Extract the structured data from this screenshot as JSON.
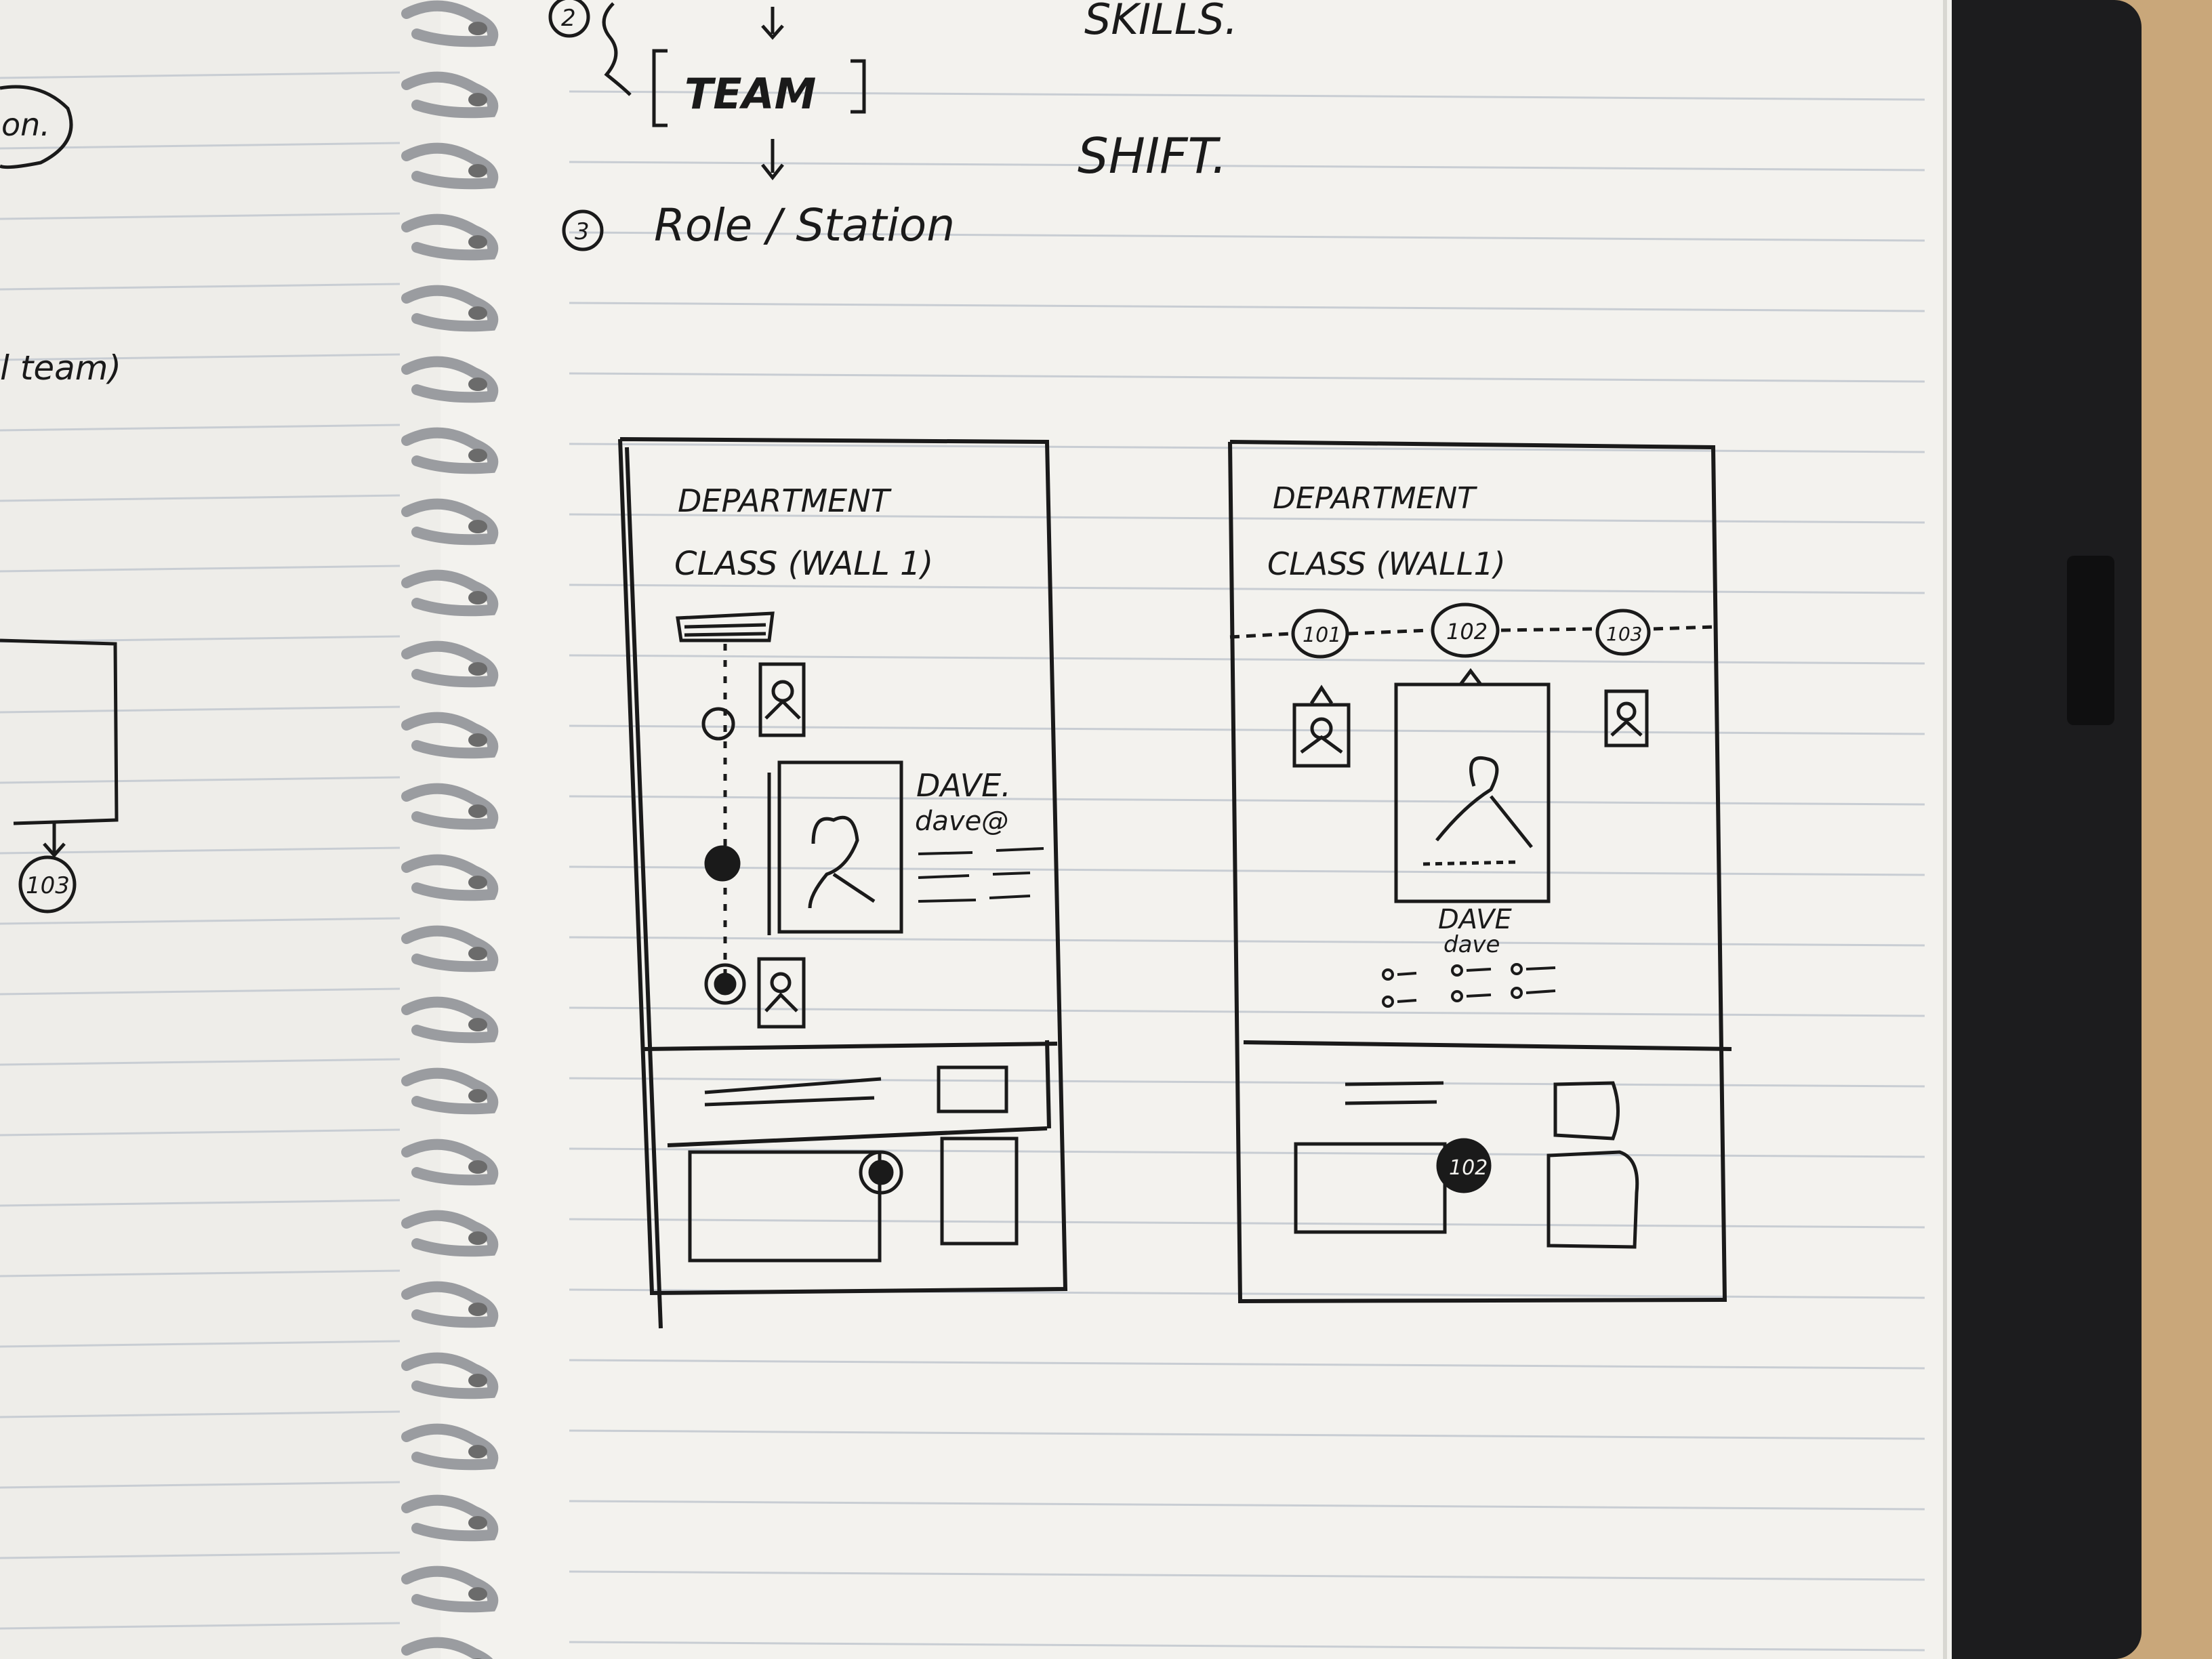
{
  "colors": {
    "desk": "#c9a77a",
    "binder": "#1c1c1e",
    "paper": "#f3f2ee",
    "ruled_line": "#c8cdd3",
    "ink": "#1a1a1a",
    "spiral": "#9a9ca0"
  },
  "left_page": {
    "fragment_top": "on.",
    "fragment_mid": "l team)",
    "node_label": "103"
  },
  "top_notes": {
    "step2_marker": "2",
    "team_label": "TEAM",
    "step3_marker": "3",
    "role_label": "Role / Station",
    "skills_label": "SKILLS.",
    "shift_label": "SHIFT."
  },
  "sketch_a": {
    "department": "DEPARTMENT",
    "class_label": "CLASS (WALL 1)",
    "person_name": "DAVE.",
    "person_email": "dave@"
  },
  "sketch_b": {
    "department": "DEPARTMENT",
    "class_label": "CLASS (WALL1)",
    "nodes": [
      "101",
      "102",
      "103"
    ],
    "person_name": "DAVE",
    "person_email": "dave",
    "selected_marker": "102"
  }
}
